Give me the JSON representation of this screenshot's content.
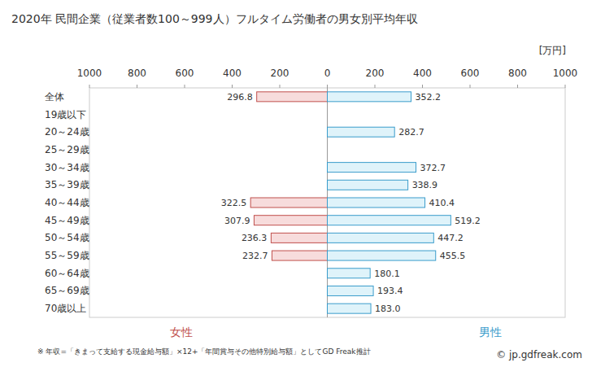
{
  "chart_data": {
    "type": "bar",
    "orientation": "horizontal",
    "title": "2020年 民間企業（従業者数100～999人）フルタイム労働者の男女別平均年収",
    "xlabel": "[万円]",
    "categories": [
      "全体",
      "19歳以下",
      "20～24歳",
      "25～29歳",
      "30～34歳",
      "35～39歳",
      "40～44歳",
      "45～49歳",
      "50～54歳",
      "55～59歳",
      "60～64歳",
      "65～69歳",
      "70歳以上"
    ],
    "series": [
      {
        "name": "女性",
        "color": "#c0504d",
        "values": [
          296.8,
          null,
          null,
          null,
          null,
          null,
          322.5,
          307.9,
          236.3,
          232.7,
          null,
          null,
          null
        ]
      },
      {
        "name": "男性",
        "color": "#3a9ccb",
        "values": [
          352.2,
          null,
          282.7,
          null,
          372.7,
          338.9,
          410.4,
          519.2,
          447.2,
          455.5,
          180.1,
          193.4,
          183.0
        ],
        "value_labels": [
          "352.2",
          null,
          "282.7",
          null,
          "372.7",
          "338.9",
          "410.4",
          "519.2",
          "447.2",
          "455.5",
          "180.1",
          "193.4",
          "183.0"
        ]
      }
    ],
    "xlim": [
      0,
      1000
    ],
    "xticks": [
      0,
      200,
      400,
      600,
      800,
      1000
    ],
    "grid": false,
    "data_labels": true,
    "annotations": [
      "※ 年収=「きまって支給する現金給与額」×12+「年間賞与その他特別給与額」としてGD Freak推計",
      "© jp.gdfreak.com"
    ]
  }
}
